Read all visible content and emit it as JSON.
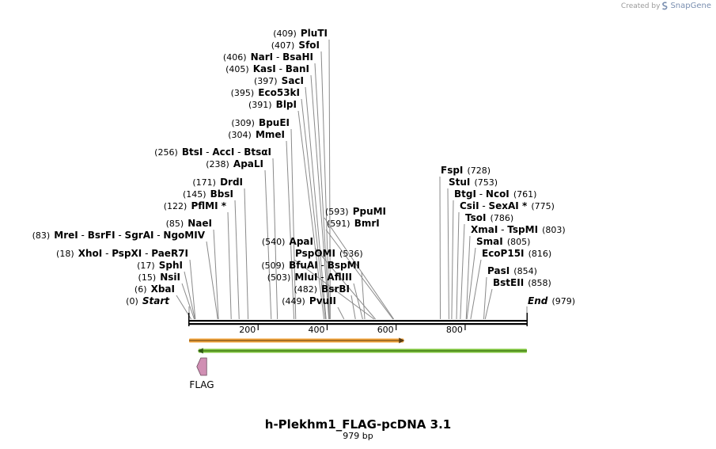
{
  "credit": {
    "prefix": "Created by",
    "brand": "SnapGene",
    "logo_icon": "snapgene-logo-icon"
  },
  "map": {
    "name": "h-Plekhm1_FLAG-pcDNA 3.1",
    "length_label": "979 bp",
    "length": 979,
    "ruler_ticks": [
      "200",
      "400",
      "600",
      "800"
    ],
    "ruler_tick_values": [
      200,
      400,
      600,
      800
    ],
    "colors": {
      "backbone": "#000000",
      "leader": "#8a8a8a",
      "feature_orange": "#f2a33a",
      "feature_green": "#7dc53a",
      "flag": "#d08fb3"
    }
  },
  "sites": [
    {
      "pos": 409,
      "label": "(409)",
      "enzymes": [
        "PluTI"
      ]
    },
    {
      "pos": 407,
      "label": "(407)",
      "enzymes": [
        "SfoI"
      ]
    },
    {
      "pos": 406,
      "label": "(406)",
      "enzymes": [
        "NarI",
        "BsaHI"
      ]
    },
    {
      "pos": 405,
      "label": "(405)",
      "enzymes": [
        "KasI",
        "BanI"
      ]
    },
    {
      "pos": 397,
      "label": "(397)",
      "enzymes": [
        "SacI"
      ]
    },
    {
      "pos": 395,
      "label": "(395)",
      "enzymes": [
        "Eco53kI"
      ]
    },
    {
      "pos": 391,
      "label": "(391)",
      "enzymes": [
        "BlpI"
      ]
    },
    {
      "pos": 309,
      "label": "(309)",
      "enzymes": [
        "BpuEI"
      ]
    },
    {
      "pos": 304,
      "label": "(304)",
      "enzymes": [
        "MmeI"
      ]
    },
    {
      "pos": 256,
      "label": "(256)",
      "enzymes": [
        "BtsI",
        "AccI",
        "BtsαI"
      ]
    },
    {
      "pos": 238,
      "label": "(238)",
      "enzymes": [
        "ApaLI"
      ]
    },
    {
      "pos": 171,
      "label": "(171)",
      "enzymes": [
        "DrdI"
      ]
    },
    {
      "pos": 145,
      "label": "(145)",
      "enzymes": [
        "BbsI"
      ]
    },
    {
      "pos": 122,
      "label": "(122)",
      "enzymes": [
        "PflMI *"
      ]
    },
    {
      "pos": 85,
      "label": "(85)",
      "enzymes": [
        "NaeI"
      ]
    },
    {
      "pos": 83,
      "label": "(83)",
      "enzymes": [
        "MreI",
        "BsrFI",
        "SgrAI",
        "NgoMIV"
      ]
    },
    {
      "pos": 18,
      "label": "(18)",
      "enzymes": [
        "XhoI",
        "PspXI",
        "PaeR7I"
      ]
    },
    {
      "pos": 17,
      "label": "(17)",
      "enzymes": [
        "SphI"
      ]
    },
    {
      "pos": 15,
      "label": "(15)",
      "enzymes": [
        "NsiI"
      ]
    },
    {
      "pos": 6,
      "label": "(6)",
      "enzymes": [
        "XbaI"
      ]
    },
    {
      "pos": 0,
      "label": "(0)",
      "enzymes": [
        "Start"
      ]
    },
    {
      "pos": 593,
      "label": "(593)",
      "enzymes": [
        "PpuMI"
      ]
    },
    {
      "pos": 591,
      "label": "(591)",
      "enzymes": [
        "BmrI"
      ]
    },
    {
      "pos": 540,
      "label": "(540)",
      "enzymes": [
        "ApaI"
      ]
    },
    {
      "pos": 536,
      "label": "(536)",
      "enzymes": [
        "PspOMI"
      ]
    },
    {
      "pos": 509,
      "label": "(509)",
      "enzymes": [
        "BfuAI",
        "BspMI"
      ]
    },
    {
      "pos": 503,
      "label": "(503)",
      "enzymes": [
        "MluI",
        "AflIII"
      ]
    },
    {
      "pos": 482,
      "label": "(482)",
      "enzymes": [
        "BsrBI"
      ]
    },
    {
      "pos": 449,
      "label": "(449)",
      "enzymes": [
        "PvuII"
      ]
    },
    {
      "pos": 728,
      "label": "(728)",
      "enzymes": [
        "FspI"
      ]
    },
    {
      "pos": 753,
      "label": "(753)",
      "enzymes": [
        "StuI"
      ]
    },
    {
      "pos": 761,
      "label": "(761)",
      "enzymes": [
        "BtgI",
        "NcoI"
      ]
    },
    {
      "pos": 775,
      "label": "(775)",
      "enzymes": [
        "CsiI",
        "SexAI *"
      ]
    },
    {
      "pos": 786,
      "label": "(786)",
      "enzymes": [
        "TsoI"
      ]
    },
    {
      "pos": 803,
      "label": "(803)",
      "enzymes": [
        "XmaI",
        "TspMI"
      ]
    },
    {
      "pos": 805,
      "label": "(805)",
      "enzymes": [
        "SmaI"
      ]
    },
    {
      "pos": 816,
      "label": "(816)",
      "enzymes": [
        "EcoP15I"
      ]
    },
    {
      "pos": 854,
      "label": "(854)",
      "enzymes": [
        "PasI"
      ]
    },
    {
      "pos": 858,
      "label": "(858)",
      "enzymes": [
        "BstEII"
      ]
    },
    {
      "pos": 979,
      "label": "(979)",
      "enzymes": [
        "End"
      ]
    }
  ],
  "features": [
    {
      "name": "orange-feature",
      "start": 0,
      "end": 622,
      "direction": "forward",
      "label": ""
    },
    {
      "name": "green-feature",
      "start": 27,
      "end": 979,
      "direction": "reverse",
      "label": ""
    },
    {
      "name": "FLAG",
      "start": 27,
      "end": 51,
      "direction": "reverse",
      "label": "FLAG"
    }
  ]
}
